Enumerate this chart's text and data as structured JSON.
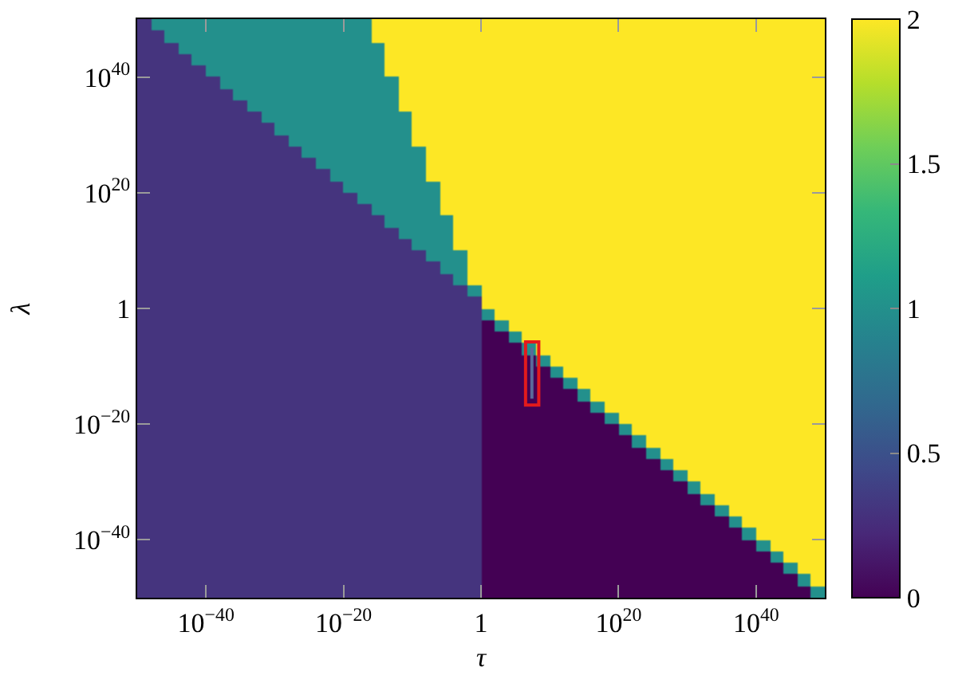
{
  "chart_data": {
    "type": "heatmap",
    "xlabel": "τ",
    "ylabel": "λ",
    "log": "xy",
    "xlim": [
      1e-50,
      1e+50
    ],
    "ylim": [
      1e-50,
      1e+50
    ],
    "xticks": [
      {
        "value": 1e-40,
        "label": "10$^{−40}$"
      },
      {
        "value": 1e-20,
        "label": "10$^{−20}$"
      },
      1,
      {
        "value": 1e+20,
        "label": "10$^{20}$"
      },
      {
        "value": 1e+40,
        "label": "10$^{40}$"
      }
    ],
    "yticks": [
      {
        "value": 1e-40,
        "label": "10$^{−40}$"
      },
      {
        "value": 1e-20,
        "label": "10$^{−20}$"
      },
      1,
      {
        "value": 1e+20,
        "label": "10$^{20}$"
      },
      {
        "value": 1e+40,
        "label": "10$^{40}$"
      }
    ],
    "clim": [
      0,
      2
    ],
    "cticks": [
      0,
      0.5,
      1,
      1.5,
      2
    ],
    "x": [
      1e-49,
      1e-47,
      1e-45,
      1e-43,
      1e-41,
      1e-39,
      1e-37,
      1e-35,
      1e-33,
      1e-31,
      1e-29,
      1e-27,
      1e-25,
      1e-23,
      1e-21,
      1e-19,
      1e-17,
      1e-15,
      1e-13,
      1e-11,
      1e-09,
      1e-07,
      1e-05,
      0.001,
      0.1,
      10.0,
      1000.0,
      100000.0,
      10000000.0,
      1000000000.0,
      100000000000.0,
      10000000000000.0,
      1000000000000000.0,
      1e+17,
      1e+19,
      1e+21,
      1e+23,
      1e+25,
      1e+27,
      1e+29,
      1e+31,
      1e+33,
      1e+35,
      1e+37,
      1e+39,
      1e+41,
      1e+43,
      1e+45,
      1e+47,
      1e+49
    ],
    "y": [
      1e+49,
      1e+47,
      1e+45,
      1e+43,
      1e+41,
      1e+39,
      1e+37,
      1e+35,
      1e+33,
      1e+31,
      1e+29,
      1e+27,
      1e+25,
      1e+23,
      1e+21,
      1e+19,
      1e+17,
      1000000000000000.0,
      10000000000000.0,
      100000000000.0,
      1000000000.0,
      10000000.0,
      100000.0,
      1000.0,
      10.0,
      0.1,
      0.001,
      1e-05,
      1e-07,
      1e-09,
      1e-11,
      1e-13,
      1e-15,
      1e-17,
      1e-19,
      1e-21,
      1e-23,
      1e-25,
      1e-27,
      1e-29,
      1e-31,
      1e-33,
      1e-35,
      1e-37,
      1e-39,
      1e-41,
      1e-43,
      1e-45,
      1e-47,
      1e-49
    ],
    "cells": [
      [
        0.3,
        1,
        1,
        1,
        1,
        1,
        1,
        1,
        1,
        1,
        1,
        1,
        1,
        1,
        1,
        1,
        1,
        2,
        2,
        2,
        2,
        2,
        2,
        2,
        2,
        2,
        2,
        2,
        2,
        2,
        2,
        2,
        2,
        2,
        2,
        2,
        2,
        2,
        2,
        2,
        2,
        2,
        2,
        2,
        2,
        2,
        2,
        2,
        2,
        2
      ],
      [
        0.3,
        0.3,
        1,
        1,
        1,
        1,
        1,
        1,
        1,
        1,
        1,
        1,
        1,
        1,
        1,
        1,
        1,
        2,
        2,
        2,
        2,
        2,
        2,
        2,
        2,
        2,
        2,
        2,
        2,
        2,
        2,
        2,
        2,
        2,
        2,
        2,
        2,
        2,
        2,
        2,
        2,
        2,
        2,
        2,
        2,
        2,
        2,
        2,
        2,
        2
      ],
      [
        0.3,
        0.3,
        0.3,
        1,
        1,
        1,
        1,
        1,
        1,
        1,
        1,
        1,
        1,
        1,
        1,
        1,
        1,
        1,
        2,
        2,
        2,
        2,
        2,
        2,
        2,
        2,
        2,
        2,
        2,
        2,
        2,
        2,
        2,
        2,
        2,
        2,
        2,
        2,
        2,
        2,
        2,
        2,
        2,
        2,
        2,
        2,
        2,
        2,
        2,
        2
      ],
      [
        0.3,
        0.3,
        0.3,
        0.3,
        1,
        1,
        1,
        1,
        1,
        1,
        1,
        1,
        1,
        1,
        1,
        1,
        1,
        1,
        2,
        2,
        2,
        2,
        2,
        2,
        2,
        2,
        2,
        2,
        2,
        2,
        2,
        2,
        2,
        2,
        2,
        2,
        2,
        2,
        2,
        2,
        2,
        2,
        2,
        2,
        2,
        2,
        2,
        2,
        2,
        2
      ],
      [
        0.3,
        0.3,
        0.3,
        0.3,
        0.3,
        1,
        1,
        1,
        1,
        1,
        1,
        1,
        1,
        1,
        1,
        1,
        1,
        1,
        2,
        2,
        2,
        2,
        2,
        2,
        2,
        2,
        2,
        2,
        2,
        2,
        2,
        2,
        2,
        2,
        2,
        2,
        2,
        2,
        2,
        2,
        2,
        2,
        2,
        2,
        2,
        2,
        2,
        2,
        2,
        2
      ],
      [
        0.3,
        0.3,
        0.3,
        0.3,
        0.3,
        0.3,
        1,
        1,
        1,
        1,
        1,
        1,
        1,
        1,
        1,
        1,
        1,
        1,
        1,
        2,
        2,
        2,
        2,
        2,
        2,
        2,
        2,
        2,
        2,
        2,
        2,
        2,
        2,
        2,
        2,
        2,
        2,
        2,
        2,
        2,
        2,
        2,
        2,
        2,
        2,
        2,
        2,
        2,
        2,
        2
      ],
      [
        0.3,
        0.3,
        0.3,
        0.3,
        0.3,
        0.3,
        0.3,
        1,
        1,
        1,
        1,
        1,
        1,
        1,
        1,
        1,
        1,
        1,
        1,
        2,
        2,
        2,
        2,
        2,
        2,
        2,
        2,
        2,
        2,
        2,
        2,
        2,
        2,
        2,
        2,
        2,
        2,
        2,
        2,
        2,
        2,
        2,
        2,
        2,
        2,
        2,
        2,
        2,
        2,
        2
      ],
      [
        0.3,
        0.3,
        0.3,
        0.3,
        0.3,
        0.3,
        0.3,
        0.3,
        1,
        1,
        1,
        1,
        1,
        1,
        1,
        1,
        1,
        1,
        1,
        2,
        2,
        2,
        2,
        2,
        2,
        2,
        2,
        2,
        2,
        2,
        2,
        2,
        2,
        2,
        2,
        2,
        2,
        2,
        2,
        2,
        2,
        2,
        2,
        2,
        2,
        2,
        2,
        2,
        2,
        2
      ],
      [
        0.3,
        0.3,
        0.3,
        0.3,
        0.3,
        0.3,
        0.3,
        0.3,
        0.3,
        1,
        1,
        1,
        1,
        1,
        1,
        1,
        1,
        1,
        1,
        1,
        2,
        2,
        2,
        2,
        2,
        2,
        2,
        2,
        2,
        2,
        2,
        2,
        2,
        2,
        2,
        2,
        2,
        2,
        2,
        2,
        2,
        2,
        2,
        2,
        2,
        2,
        2,
        2,
        2,
        2
      ],
      [
        0.3,
        0.3,
        0.3,
        0.3,
        0.3,
        0.3,
        0.3,
        0.3,
        0.3,
        0.3,
        1,
        1,
        1,
        1,
        1,
        1,
        1,
        1,
        1,
        1,
        2,
        2,
        2,
        2,
        2,
        2,
        2,
        2,
        2,
        2,
        2,
        2,
        2,
        2,
        2,
        2,
        2,
        2,
        2,
        2,
        2,
        2,
        2,
        2,
        2,
        2,
        2,
        2,
        2,
        2
      ],
      [
        0.3,
        0.3,
        0.3,
        0.3,
        0.3,
        0.3,
        0.3,
        0.3,
        0.3,
        0.3,
        0.3,
        1,
        1,
        1,
        1,
        1,
        1,
        1,
        1,
        1,
        2,
        2,
        2,
        2,
        2,
        2,
        2,
        2,
        2,
        2,
        2,
        2,
        2,
        2,
        2,
        2,
        2,
        2,
        2,
        2,
        2,
        2,
        2,
        2,
        2,
        2,
        2,
        2,
        2,
        2
      ],
      [
        0.3,
        0.3,
        0.3,
        0.3,
        0.3,
        0.3,
        0.3,
        0.3,
        0.3,
        0.3,
        0.3,
        0.3,
        1,
        1,
        1,
        1,
        1,
        1,
        1,
        1,
        1,
        2,
        2,
        2,
        2,
        2,
        2,
        2,
        2,
        2,
        2,
        2,
        2,
        2,
        2,
        2,
        2,
        2,
        2,
        2,
        2,
        2,
        2,
        2,
        2,
        2,
        2,
        2,
        2,
        2
      ],
      [
        0.3,
        0.3,
        0.3,
        0.3,
        0.3,
        0.3,
        0.3,
        0.3,
        0.3,
        0.3,
        0.3,
        0.3,
        0.3,
        1,
        1,
        1,
        1,
        1,
        1,
        1,
        1,
        2,
        2,
        2,
        2,
        2,
        2,
        2,
        2,
        2,
        2,
        2,
        2,
        2,
        2,
        2,
        2,
        2,
        2,
        2,
        2,
        2,
        2,
        2,
        2,
        2,
        2,
        2,
        2,
        2
      ],
      [
        0.3,
        0.3,
        0.3,
        0.3,
        0.3,
        0.3,
        0.3,
        0.3,
        0.3,
        0.3,
        0.3,
        0.3,
        0.3,
        0.3,
        1,
        1,
        1,
        1,
        1,
        1,
        1,
        2,
        2,
        2,
        2,
        2,
        2,
        2,
        2,
        2,
        2,
        2,
        2,
        2,
        2,
        2,
        2,
        2,
        2,
        2,
        2,
        2,
        2,
        2,
        2,
        2,
        2,
        2,
        2,
        2
      ],
      [
        0.3,
        0.3,
        0.3,
        0.3,
        0.3,
        0.3,
        0.3,
        0.3,
        0.3,
        0.3,
        0.3,
        0.3,
        0.3,
        0.3,
        0.3,
        1,
        1,
        1,
        1,
        1,
        1,
        1,
        2,
        2,
        2,
        2,
        2,
        2,
        2,
        2,
        2,
        2,
        2,
        2,
        2,
        2,
        2,
        2,
        2,
        2,
        2,
        2,
        2,
        2,
        2,
        2,
        2,
        2,
        2,
        2
      ],
      [
        0.3,
        0.3,
        0.3,
        0.3,
        0.3,
        0.3,
        0.3,
        0.3,
        0.3,
        0.3,
        0.3,
        0.3,
        0.3,
        0.3,
        0.3,
        0.3,
        1,
        1,
        1,
        1,
        1,
        1,
        2,
        2,
        2,
        2,
        2,
        2,
        2,
        2,
        2,
        2,
        2,
        2,
        2,
        2,
        2,
        2,
        2,
        2,
        2,
        2,
        2,
        2,
        2,
        2,
        2,
        2,
        2,
        2
      ],
      [
        0.3,
        0.3,
        0.3,
        0.3,
        0.3,
        0.3,
        0.3,
        0.3,
        0.3,
        0.3,
        0.3,
        0.3,
        0.3,
        0.3,
        0.3,
        0.3,
        0.3,
        1,
        1,
        1,
        1,
        1,
        2,
        2,
        2,
        2,
        2,
        2,
        2,
        2,
        2,
        2,
        2,
        2,
        2,
        2,
        2,
        2,
        2,
        2,
        2,
        2,
        2,
        2,
        2,
        2,
        2,
        2,
        2,
        2
      ],
      [
        0.3,
        0.3,
        0.3,
        0.3,
        0.3,
        0.3,
        0.3,
        0.3,
        0.3,
        0.3,
        0.3,
        0.3,
        0.3,
        0.3,
        0.3,
        0.3,
        0.3,
        0.3,
        1,
        1,
        1,
        1,
        1,
        2,
        2,
        2,
        2,
        2,
        2,
        2,
        2,
        2,
        2,
        2,
        2,
        2,
        2,
        2,
        2,
        2,
        2,
        2,
        2,
        2,
        2,
        2,
        2,
        2,
        2,
        2
      ],
      [
        0.3,
        0.3,
        0.3,
        0.3,
        0.3,
        0.3,
        0.3,
        0.3,
        0.3,
        0.3,
        0.3,
        0.3,
        0.3,
        0.3,
        0.3,
        0.3,
        0.3,
        0.3,
        0.3,
        1,
        1,
        1,
        1,
        2,
        2,
        2,
        2,
        2,
        2,
        2,
        2,
        2,
        2,
        2,
        2,
        2,
        2,
        2,
        2,
        2,
        2,
        2,
        2,
        2,
        2,
        2,
        2,
        2,
        2,
        2
      ],
      [
        0.3,
        0.3,
        0.3,
        0.3,
        0.3,
        0.3,
        0.3,
        0.3,
        0.3,
        0.3,
        0.3,
        0.3,
        0.3,
        0.3,
        0.3,
        0.3,
        0.3,
        0.3,
        0.3,
        0.3,
        1,
        1,
        1,
        2,
        2,
        2,
        2,
        2,
        2,
        2,
        2,
        2,
        2,
        2,
        2,
        2,
        2,
        2,
        2,
        2,
        2,
        2,
        2,
        2,
        2,
        2,
        2,
        2,
        2,
        2
      ],
      [
        0.3,
        0.3,
        0.3,
        0.3,
        0.3,
        0.3,
        0.3,
        0.3,
        0.3,
        0.3,
        0.3,
        0.3,
        0.3,
        0.3,
        0.3,
        0.3,
        0.3,
        0.3,
        0.3,
        0.3,
        0.3,
        1,
        1,
        1,
        2,
        2,
        2,
        2,
        2,
        2,
        2,
        2,
        2,
        2,
        2,
        2,
        2,
        2,
        2,
        2,
        2,
        2,
        2,
        2,
        2,
        2,
        2,
        2,
        2,
        2
      ],
      [
        0.3,
        0.3,
        0.3,
        0.3,
        0.3,
        0.3,
        0.3,
        0.3,
        0.3,
        0.3,
        0.3,
        0.3,
        0.3,
        0.3,
        0.3,
        0.3,
        0.3,
        0.3,
        0.3,
        0.3,
        0.3,
        0.3,
        1,
        1,
        2,
        2,
        2,
        2,
        2,
        2,
        2,
        2,
        2,
        2,
        2,
        2,
        2,
        2,
        2,
        2,
        2,
        2,
        2,
        2,
        2,
        2,
        2,
        2,
        2,
        2
      ],
      [
        0.3,
        0.3,
        0.3,
        0.3,
        0.3,
        0.3,
        0.3,
        0.3,
        0.3,
        0.3,
        0.3,
        0.3,
        0.3,
        0.3,
        0.3,
        0.3,
        0.3,
        0.3,
        0.3,
        0.3,
        0.3,
        0.3,
        0.3,
        1,
        2,
        2,
        2,
        2,
        2,
        2,
        2,
        2,
        2,
        2,
        2,
        2,
        2,
        2,
        2,
        2,
        2,
        2,
        2,
        2,
        2,
        2,
        2,
        2,
        2,
        2
      ],
      [
        0.3,
        0.3,
        0.3,
        0.3,
        0.3,
        0.3,
        0.3,
        0.3,
        0.3,
        0.3,
        0.3,
        0.3,
        0.3,
        0.3,
        0.3,
        0.3,
        0.3,
        0.3,
        0.3,
        0.3,
        0.3,
        0.3,
        0.3,
        0.3,
        1,
        2,
        2,
        2,
        2,
        2,
        2,
        2,
        2,
        2,
        2,
        2,
        2,
        2,
        2,
        2,
        2,
        2,
        2,
        2,
        2,
        2,
        2,
        2,
        2,
        2
      ],
      [
        0.3,
        0.3,
        0.3,
        0.3,
        0.3,
        0.3,
        0.3,
        0.3,
        0.3,
        0.3,
        0.3,
        0.3,
        0.3,
        0.3,
        0.3,
        0.3,
        0.3,
        0.3,
        0.3,
        0.3,
        0.3,
        0.3,
        0.3,
        0.3,
        0.3,
        2,
        2,
        2,
        2,
        2,
        2,
        2,
        2,
        2,
        2,
        2,
        2,
        2,
        2,
        2,
        2,
        2,
        2,
        2,
        2,
        2,
        2,
        2,
        2,
        2
      ],
      [
        0.3,
        0.3,
        0.3,
        0.3,
        0.3,
        0.3,
        0.3,
        0.3,
        0.3,
        0.3,
        0.3,
        0.3,
        0.3,
        0.3,
        0.3,
        0.3,
        0.3,
        0.3,
        0.3,
        0.3,
        0.3,
        0.3,
        0.3,
        0.3,
        0.3,
        1,
        2,
        2,
        2,
        2,
        2,
        2,
        2,
        2,
        2,
        2,
        2,
        2,
        2,
        2,
        2,
        2,
        2,
        2,
        2,
        2,
        2,
        2,
        2,
        2
      ],
      [
        0.3,
        0.3,
        0.3,
        0.3,
        0.3,
        0.3,
        0.3,
        0.3,
        0.3,
        0.3,
        0.3,
        0.3,
        0.3,
        0.3,
        0.3,
        0.3,
        0.3,
        0.3,
        0.3,
        0.3,
        0.3,
        0.3,
        0.3,
        0.3,
        0.3,
        0,
        1,
        2,
        2,
        2,
        2,
        2,
        2,
        2,
        2,
        2,
        2,
        2,
        2,
        2,
        2,
        2,
        2,
        2,
        2,
        2,
        2,
        2,
        2,
        2
      ],
      [
        0.3,
        0.3,
        0.3,
        0.3,
        0.3,
        0.3,
        0.3,
        0.3,
        0.3,
        0.3,
        0.3,
        0.3,
        0.3,
        0.3,
        0.3,
        0.3,
        0.3,
        0.3,
        0.3,
        0.3,
        0.3,
        0.3,
        0.3,
        0.3,
        0.3,
        0,
        0,
        1,
        2,
        2,
        2,
        2,
        2,
        2,
        2,
        2,
        2,
        2,
        2,
        2,
        2,
        2,
        2,
        2,
        2,
        2,
        2,
        2,
        2,
        2
      ],
      [
        0.3,
        0.3,
        0.3,
        0.3,
        0.3,
        0.3,
        0.3,
        0.3,
        0.3,
        0.3,
        0.3,
        0.3,
        0.3,
        0.3,
        0.3,
        0.3,
        0.3,
        0.3,
        0.3,
        0.3,
        0.3,
        0.3,
        0.3,
        0.3,
        0.3,
        0,
        0,
        0,
        1,
        2,
        2,
        2,
        2,
        2,
        2,
        2,
        2,
        2,
        2,
        2,
        2,
        2,
        2,
        2,
        2,
        2,
        2,
        2,
        2,
        2
      ],
      [
        0.3,
        0.3,
        0.3,
        0.3,
        0.3,
        0.3,
        0.3,
        0.3,
        0.3,
        0.3,
        0.3,
        0.3,
        0.3,
        0.3,
        0.3,
        0.3,
        0.3,
        0.3,
        0.3,
        0.3,
        0.3,
        0.3,
        0.3,
        0.3,
        0.3,
        0,
        0,
        0,
        0,
        1,
        2,
        2,
        2,
        2,
        2,
        2,
        2,
        2,
        2,
        2,
        2,
        2,
        2,
        2,
        2,
        2,
        2,
        2,
        2,
        2
      ],
      [
        0.3,
        0.3,
        0.3,
        0.3,
        0.3,
        0.3,
        0.3,
        0.3,
        0.3,
        0.3,
        0.3,
        0.3,
        0.3,
        0.3,
        0.3,
        0.3,
        0.3,
        0.3,
        0.3,
        0.3,
        0.3,
        0.3,
        0.3,
        0.3,
        0.3,
        0,
        0,
        0,
        0,
        0,
        1,
        2,
        2,
        2,
        2,
        2,
        2,
        2,
        2,
        2,
        2,
        2,
        2,
        2,
        2,
        2,
        2,
        2,
        2,
        2
      ],
      [
        0.3,
        0.3,
        0.3,
        0.3,
        0.3,
        0.3,
        0.3,
        0.3,
        0.3,
        0.3,
        0.3,
        0.3,
        0.3,
        0.3,
        0.3,
        0.3,
        0.3,
        0.3,
        0.3,
        0.3,
        0.3,
        0.3,
        0.3,
        0.3,
        0.3,
        0,
        0,
        0,
        0,
        0,
        0,
        1,
        2,
        2,
        2,
        2,
        2,
        2,
        2,
        2,
        2,
        2,
        2,
        2,
        2,
        2,
        2,
        2,
        2,
        2
      ],
      [
        0.3,
        0.3,
        0.3,
        0.3,
        0.3,
        0.3,
        0.3,
        0.3,
        0.3,
        0.3,
        0.3,
        0.3,
        0.3,
        0.3,
        0.3,
        0.3,
        0.3,
        0.3,
        0.3,
        0.3,
        0.3,
        0.3,
        0.3,
        0.3,
        0.3,
        0,
        0,
        0,
        0,
        0,
        0,
        0,
        1,
        2,
        2,
        2,
        2,
        2,
        2,
        2,
        2,
        2,
        2,
        2,
        2,
        2,
        2,
        2,
        2,
        2
      ],
      [
        0.3,
        0.3,
        0.3,
        0.3,
        0.3,
        0.3,
        0.3,
        0.3,
        0.3,
        0.3,
        0.3,
        0.3,
        0.3,
        0.3,
        0.3,
        0.3,
        0.3,
        0.3,
        0.3,
        0.3,
        0.3,
        0.3,
        0.3,
        0.3,
        0.3,
        0,
        0,
        0,
        0,
        0,
        0,
        0,
        0,
        1,
        2,
        2,
        2,
        2,
        2,
        2,
        2,
        2,
        2,
        2,
        2,
        2,
        2,
        2,
        2,
        2
      ],
      [
        0.3,
        0.3,
        0.3,
        0.3,
        0.3,
        0.3,
        0.3,
        0.3,
        0.3,
        0.3,
        0.3,
        0.3,
        0.3,
        0.3,
        0.3,
        0.3,
        0.3,
        0.3,
        0.3,
        0.3,
        0.3,
        0.3,
        0.3,
        0.3,
        0.3,
        0,
        0,
        0,
        0,
        0,
        0,
        0,
        0,
        0,
        1,
        2,
        2,
        2,
        2,
        2,
        2,
        2,
        2,
        2,
        2,
        2,
        2,
        2,
        2,
        2
      ],
      [
        0.3,
        0.3,
        0.3,
        0.3,
        0.3,
        0.3,
        0.3,
        0.3,
        0.3,
        0.3,
        0.3,
        0.3,
        0.3,
        0.3,
        0.3,
        0.3,
        0.3,
        0.3,
        0.3,
        0.3,
        0.3,
        0.3,
        0.3,
        0.3,
        0.3,
        0,
        0,
        0,
        0,
        0,
        0,
        0,
        0,
        0,
        0,
        1,
        2,
        2,
        2,
        2,
        2,
        2,
        2,
        2,
        2,
        2,
        2,
        2,
        2,
        2
      ],
      [
        0.3,
        0.3,
        0.3,
        0.3,
        0.3,
        0.3,
        0.3,
        0.3,
        0.3,
        0.3,
        0.3,
        0.3,
        0.3,
        0.3,
        0.3,
        0.3,
        0.3,
        0.3,
        0.3,
        0.3,
        0.3,
        0.3,
        0.3,
        0.3,
        0.3,
        0,
        0,
        0,
        0,
        0,
        0,
        0,
        0,
        0,
        0,
        0,
        1,
        2,
        2,
        2,
        2,
        2,
        2,
        2,
        2,
        2,
        2,
        2,
        2,
        2
      ],
      [
        0.3,
        0.3,
        0.3,
        0.3,
        0.3,
        0.3,
        0.3,
        0.3,
        0.3,
        0.3,
        0.3,
        0.3,
        0.3,
        0.3,
        0.3,
        0.3,
        0.3,
        0.3,
        0.3,
        0.3,
        0.3,
        0.3,
        0.3,
        0.3,
        0.3,
        0,
        0,
        0,
        0,
        0,
        0,
        0,
        0,
        0,
        0,
        0,
        0,
        1,
        2,
        2,
        2,
        2,
        2,
        2,
        2,
        2,
        2,
        2,
        2,
        2
      ],
      [
        0.3,
        0.3,
        0.3,
        0.3,
        0.3,
        0.3,
        0.3,
        0.3,
        0.3,
        0.3,
        0.3,
        0.3,
        0.3,
        0.3,
        0.3,
        0.3,
        0.3,
        0.3,
        0.3,
        0.3,
        0.3,
        0.3,
        0.3,
        0.3,
        0.3,
        0,
        0,
        0,
        0,
        0,
        0,
        0,
        0,
        0,
        0,
        0,
        0,
        0,
        1,
        2,
        2,
        2,
        2,
        2,
        2,
        2,
        2,
        2,
        2,
        2
      ],
      [
        0.3,
        0.3,
        0.3,
        0.3,
        0.3,
        0.3,
        0.3,
        0.3,
        0.3,
        0.3,
        0.3,
        0.3,
        0.3,
        0.3,
        0.3,
        0.3,
        0.3,
        0.3,
        0.3,
        0.3,
        0.3,
        0.3,
        0.3,
        0.3,
        0.3,
        0,
        0,
        0,
        0,
        0,
        0,
        0,
        0,
        0,
        0,
        0,
        0,
        0,
        0,
        1,
        2,
        2,
        2,
        2,
        2,
        2,
        2,
        2,
        2,
        2
      ],
      [
        0.3,
        0.3,
        0.3,
        0.3,
        0.3,
        0.3,
        0.3,
        0.3,
        0.3,
        0.3,
        0.3,
        0.3,
        0.3,
        0.3,
        0.3,
        0.3,
        0.3,
        0.3,
        0.3,
        0.3,
        0.3,
        0.3,
        0.3,
        0.3,
        0.3,
        0,
        0,
        0,
        0,
        0,
        0,
        0,
        0,
        0,
        0,
        0,
        0,
        0,
        0,
        0,
        1,
        2,
        2,
        2,
        2,
        2,
        2,
        2,
        2,
        2
      ],
      [
        0.3,
        0.3,
        0.3,
        0.3,
        0.3,
        0.3,
        0.3,
        0.3,
        0.3,
        0.3,
        0.3,
        0.3,
        0.3,
        0.3,
        0.3,
        0.3,
        0.3,
        0.3,
        0.3,
        0.3,
        0.3,
        0.3,
        0.3,
        0.3,
        0.3,
        0,
        0,
        0,
        0,
        0,
        0,
        0,
        0,
        0,
        0,
        0,
        0,
        0,
        0,
        0,
        0,
        1,
        2,
        2,
        2,
        2,
        2,
        2,
        2,
        2
      ],
      [
        0.3,
        0.3,
        0.3,
        0.3,
        0.3,
        0.3,
        0.3,
        0.3,
        0.3,
        0.3,
        0.3,
        0.3,
        0.3,
        0.3,
        0.3,
        0.3,
        0.3,
        0.3,
        0.3,
        0.3,
        0.3,
        0.3,
        0.3,
        0.3,
        0.3,
        0,
        0,
        0,
        0,
        0,
        0,
        0,
        0,
        0,
        0,
        0,
        0,
        0,
        0,
        0,
        0,
        0,
        1,
        2,
        2,
        2,
        2,
        2,
        2,
        2
      ],
      [
        0.3,
        0.3,
        0.3,
        0.3,
        0.3,
        0.3,
        0.3,
        0.3,
        0.3,
        0.3,
        0.3,
        0.3,
        0.3,
        0.3,
        0.3,
        0.3,
        0.3,
        0.3,
        0.3,
        0.3,
        0.3,
        0.3,
        0.3,
        0.3,
        0.3,
        0,
        0,
        0,
        0,
        0,
        0,
        0,
        0,
        0,
        0,
        0,
        0,
        0,
        0,
        0,
        0,
        0,
        0,
        1,
        2,
        2,
        2,
        2,
        2,
        2
      ],
      [
        0.3,
        0.3,
        0.3,
        0.3,
        0.3,
        0.3,
        0.3,
        0.3,
        0.3,
        0.3,
        0.3,
        0.3,
        0.3,
        0.3,
        0.3,
        0.3,
        0.3,
        0.3,
        0.3,
        0.3,
        0.3,
        0.3,
        0.3,
        0.3,
        0.3,
        0,
        0,
        0,
        0,
        0,
        0,
        0,
        0,
        0,
        0,
        0,
        0,
        0,
        0,
        0,
        0,
        0,
        0,
        0,
        1,
        2,
        2,
        2,
        2,
        2
      ],
      [
        0.3,
        0.3,
        0.3,
        0.3,
        0.3,
        0.3,
        0.3,
        0.3,
        0.3,
        0.3,
        0.3,
        0.3,
        0.3,
        0.3,
        0.3,
        0.3,
        0.3,
        0.3,
        0.3,
        0.3,
        0.3,
        0.3,
        0.3,
        0.3,
        0.3,
        0,
        0,
        0,
        0,
        0,
        0,
        0,
        0,
        0,
        0,
        0,
        0,
        0,
        0,
        0,
        0,
        0,
        0,
        0,
        0,
        1,
        2,
        2,
        2,
        2
      ],
      [
        0.3,
        0.3,
        0.3,
        0.3,
        0.3,
        0.3,
        0.3,
        0.3,
        0.3,
        0.3,
        0.3,
        0.3,
        0.3,
        0.3,
        0.3,
        0.3,
        0.3,
        0.3,
        0.3,
        0.3,
        0.3,
        0.3,
        0.3,
        0.3,
        0.3,
        0,
        0,
        0,
        0,
        0,
        0,
        0,
        0,
        0,
        0,
        0,
        0,
        0,
        0,
        0,
        0,
        0,
        0,
        0,
        0,
        0,
        1,
        2,
        2,
        2
      ],
      [
        0.3,
        0.3,
        0.3,
        0.3,
        0.3,
        0.3,
        0.3,
        0.3,
        0.3,
        0.3,
        0.3,
        0.3,
        0.3,
        0.3,
        0.3,
        0.3,
        0.3,
        0.3,
        0.3,
        0.3,
        0.3,
        0.3,
        0.3,
        0.3,
        0.3,
        0,
        0,
        0,
        0,
        0,
        0,
        0,
        0,
        0,
        0,
        0,
        0,
        0,
        0,
        0,
        0,
        0,
        0,
        0,
        0,
        0,
        0,
        1,
        2,
        2
      ],
      [
        0.3,
        0.3,
        0.3,
        0.3,
        0.3,
        0.3,
        0.3,
        0.3,
        0.3,
        0.3,
        0.3,
        0.3,
        0.3,
        0.3,
        0.3,
        0.3,
        0.3,
        0.3,
        0.3,
        0.3,
        0.3,
        0.3,
        0.3,
        0.3,
        0.3,
        0,
        0,
        0,
        0,
        0,
        0,
        0,
        0,
        0,
        0,
        0,
        0,
        0,
        0,
        0,
        0,
        0,
        0,
        0,
        0,
        0,
        0,
        0,
        1,
        2
      ],
      [
        0.3,
        0.3,
        0.3,
        0.3,
        0.3,
        0.3,
        0.3,
        0.3,
        0.3,
        0.3,
        0.3,
        0.3,
        0.3,
        0.3,
        0.3,
        0.3,
        0.3,
        0.3,
        0.3,
        0.3,
        0.3,
        0.3,
        0.3,
        0.3,
        0.3,
        0,
        0,
        0,
        0,
        0,
        0,
        0,
        0,
        0,
        0,
        0,
        0,
        0,
        0,
        0,
        0,
        0,
        0,
        0,
        0,
        0,
        0,
        0,
        0,
        1
      ]
    ],
    "series": [
      {
        "type": "line",
        "color": "#5a6a9a",
        "x": [
          25000000.0,
          25000000.0
        ],
        "values": [
          1.6e-07,
          2.5e-16
        ]
      }
    ]
  }
}
